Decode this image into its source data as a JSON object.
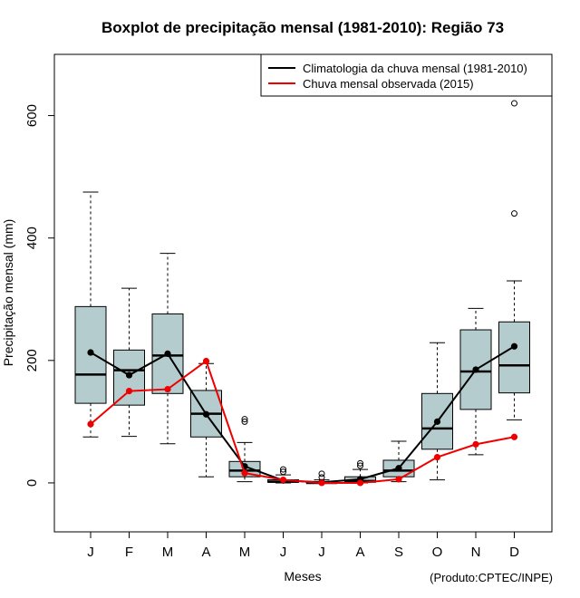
{
  "chart_data": {
    "type": "boxplot",
    "title": "Boxplot de precipitação mensal (1981-2010): Região 73",
    "xlabel": "Meses",
    "ylabel": "Precipitação mensal (mm)",
    "credit": "(Produto:CPTEC/INPE)",
    "ylim": [
      -80,
      700
    ],
    "yticks": [
      0,
      200,
      400,
      600
    ],
    "categories": [
      "J",
      "F",
      "M",
      "A",
      "M",
      "J",
      "J",
      "A",
      "S",
      "O",
      "N",
      "D"
    ],
    "boxes": [
      {
        "whisker_low": 75,
        "q1": 130,
        "median": 177,
        "q3": 288,
        "whisker_high": 475,
        "outliers": []
      },
      {
        "whisker_low": 76,
        "q1": 127,
        "median": 184,
        "q3": 217,
        "whisker_high": 318,
        "outliers": []
      },
      {
        "whisker_low": 64,
        "q1": 146,
        "median": 208,
        "q3": 276,
        "whisker_high": 375,
        "outliers": []
      },
      {
        "whisker_low": 10,
        "q1": 75,
        "median": 113,
        "q3": 151,
        "whisker_high": 195,
        "outliers": []
      },
      {
        "whisker_low": 2,
        "q1": 10,
        "median": 20,
        "q3": 35,
        "whisker_high": 66,
        "outliers": [
          100,
          104
        ]
      },
      {
        "whisker_low": 0,
        "q1": 1,
        "median": 2,
        "q3": 5,
        "whisker_high": 13,
        "outliers": [
          18,
          22
        ]
      },
      {
        "whisker_low": 0,
        "q1": 0,
        "median": 0,
        "q3": 2,
        "whisker_high": 5,
        "outliers": [
          9,
          15
        ]
      },
      {
        "whisker_low": 0,
        "q1": 1,
        "median": 3,
        "q3": 10,
        "whisker_high": 22,
        "outliers": [
          28,
          32
        ]
      },
      {
        "whisker_low": 2,
        "q1": 10,
        "median": 20,
        "q3": 37,
        "whisker_high": 68,
        "outliers": []
      },
      {
        "whisker_low": 5,
        "q1": 55,
        "median": 89,
        "q3": 146,
        "whisker_high": 229,
        "outliers": []
      },
      {
        "whisker_low": 46,
        "q1": 120,
        "median": 182,
        "q3": 250,
        "whisker_high": 285,
        "outliers": []
      },
      {
        "whisker_low": 103,
        "q1": 147,
        "median": 192,
        "q3": 263,
        "whisker_high": 330,
        "outliers": [
          440,
          620
        ]
      }
    ],
    "series": [
      {
        "name": "Climatologia da chuva mensal (1981-2010)",
        "color": "#000000",
        "values": [
          213,
          176,
          211,
          112,
          27,
          4,
          1,
          6,
          24,
          100,
          185,
          223
        ]
      },
      {
        "name": "Chuva mensal observada (2015)",
        "color": "#ee0000",
        "values": [
          96,
          150,
          153,
          199,
          16,
          5,
          0,
          0,
          6,
          42,
          63,
          75
        ]
      }
    ],
    "box_fill": "#b4cccd",
    "legend_position": "top-right"
  }
}
